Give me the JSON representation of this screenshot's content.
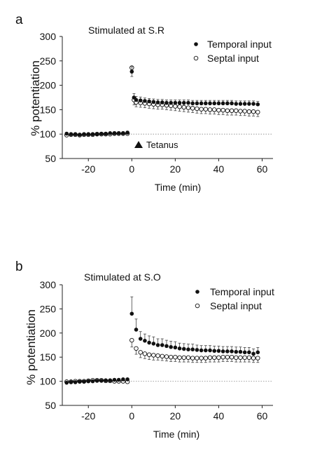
{
  "chart_data": [
    {
      "type": "scatter",
      "panel_label": "a",
      "title": "Stimulated at S.R",
      "xlabel": "Time (min)",
      "ylabel": "% potentiation",
      "xlim": [
        -32,
        65
      ],
      "ylim": [
        50,
        300
      ],
      "x_ticks": [
        -20,
        0,
        20,
        40,
        60
      ],
      "y_ticks": [
        50,
        100,
        150,
        200,
        250,
        300
      ],
      "baseline": 100,
      "annotation": "Tetanus",
      "annotation_x": -1,
      "legend_position": "top-right",
      "series": [
        {
          "name": "Temporal input",
          "marker": "filled-circle",
          "x": [
            -30,
            -28,
            -26,
            -24,
            -22,
            -20,
            -18,
            -16,
            -14,
            -12,
            -10,
            -8,
            -6,
            -4,
            -2,
            0,
            1,
            2,
            4,
            6,
            8,
            10,
            12,
            14,
            16,
            18,
            20,
            22,
            24,
            26,
            28,
            30,
            32,
            34,
            36,
            38,
            40,
            42,
            44,
            46,
            48,
            50,
            52,
            54,
            56,
            58
          ],
          "y": [
            101,
            100,
            100,
            99,
            100,
            100,
            100,
            100,
            101,
            101,
            102,
            102,
            102,
            102,
            103,
            228,
            175,
            170,
            169,
            168,
            167,
            166,
            165,
            165,
            164,
            164,
            164,
            164,
            164,
            164,
            163,
            163,
            163,
            163,
            163,
            163,
            163,
            163,
            163,
            163,
            162,
            162,
            162,
            162,
            162,
            161
          ],
          "err": [
            2,
            2,
            2,
            2,
            2,
            2,
            2,
            2,
            2,
            2,
            2,
            3,
            3,
            3,
            3,
            10,
            8,
            7,
            7,
            6,
            6,
            6,
            6,
            6,
            6,
            6,
            6,
            6,
            6,
            6,
            6,
            6,
            6,
            6,
            6,
            6,
            6,
            6,
            6,
            6,
            6,
            6,
            6,
            6,
            6,
            6
          ]
        },
        {
          "name": "Septal input",
          "marker": "open-circle",
          "x": [
            -30,
            -28,
            -26,
            -24,
            -22,
            -20,
            -18,
            -16,
            -14,
            -12,
            -10,
            -8,
            -6,
            -4,
            -2,
            0,
            1,
            2,
            4,
            6,
            8,
            10,
            12,
            14,
            16,
            18,
            20,
            22,
            24,
            26,
            28,
            30,
            32,
            34,
            36,
            38,
            40,
            42,
            44,
            46,
            48,
            50,
            52,
            54,
            56,
            58
          ],
          "y": [
            98,
            99,
            99,
            98,
            99,
            99,
            99,
            100,
            100,
            100,
            100,
            101,
            101,
            101,
            101,
            236,
            170,
            165,
            164,
            163,
            162,
            161,
            160,
            160,
            159,
            158,
            157,
            156,
            155,
            154,
            153,
            152,
            151,
            151,
            150,
            150,
            149,
            149,
            148,
            148,
            148,
            147,
            147,
            146,
            146,
            145
          ],
          "err": [
            2,
            2,
            2,
            2,
            2,
            2,
            2,
            2,
            2,
            2,
            2,
            2,
            2,
            2,
            2,
            18,
            10,
            9,
            9,
            9,
            9,
            9,
            9,
            9,
            9,
            9,
            9,
            9,
            9,
            9,
            9,
            9,
            9,
            9,
            9,
            9,
            9,
            9,
            9,
            9,
            9,
            9,
            9,
            9,
            9,
            9
          ]
        }
      ]
    },
    {
      "type": "scatter",
      "panel_label": "b",
      "title": "Stimulated at S.O",
      "xlabel": "Time (min)",
      "ylabel": "% potentiation",
      "xlim": [
        -32,
        65
      ],
      "ylim": [
        50,
        300
      ],
      "x_ticks": [
        -20,
        0,
        20,
        40,
        60
      ],
      "y_ticks": [
        50,
        100,
        150,
        200,
        250,
        300
      ],
      "baseline": 100,
      "legend_position": "top-right",
      "series": [
        {
          "name": "Temporal input",
          "marker": "filled-circle",
          "x": [
            -30,
            -28,
            -26,
            -24,
            -22,
            -20,
            -18,
            -16,
            -14,
            -12,
            -10,
            -8,
            -6,
            -4,
            -2,
            0,
            2,
            4,
            6,
            8,
            10,
            12,
            14,
            16,
            18,
            20,
            22,
            24,
            26,
            28,
            30,
            32,
            34,
            36,
            38,
            40,
            42,
            44,
            46,
            48,
            50,
            52,
            54,
            56,
            58
          ],
          "y": [
            97,
            98,
            98,
            99,
            99,
            100,
            100,
            101,
            101,
            102,
            102,
            103,
            103,
            104,
            104,
            240,
            207,
            188,
            184,
            180,
            178,
            175,
            175,
            173,
            171,
            170,
            168,
            167,
            166,
            166,
            165,
            164,
            164,
            164,
            163,
            163,
            162,
            162,
            162,
            161,
            161,
            160,
            160,
            157,
            160
          ],
          "err": [
            2,
            2,
            2,
            2,
            2,
            2,
            2,
            2,
            2,
            2,
            2,
            2,
            2,
            2,
            2,
            35,
            22,
            15,
            14,
            14,
            14,
            13,
            13,
            12,
            12,
            12,
            11,
            11,
            11,
            11,
            10,
            10,
            10,
            10,
            10,
            10,
            10,
            10,
            10,
            10,
            10,
            10,
            10,
            10,
            10
          ]
        },
        {
          "name": "Septal input",
          "marker": "open-circle",
          "x": [
            -30,
            -28,
            -26,
            -24,
            -22,
            -20,
            -18,
            -16,
            -14,
            -12,
            -10,
            -8,
            -6,
            -4,
            -2,
            0,
            2,
            4,
            6,
            8,
            10,
            12,
            14,
            16,
            18,
            20,
            22,
            24,
            26,
            28,
            30,
            32,
            34,
            36,
            38,
            40,
            42,
            44,
            46,
            48,
            50,
            52,
            54,
            56,
            58
          ],
          "y": [
            99,
            99,
            100,
            100,
            100,
            101,
            102,
            102,
            102,
            101,
            101,
            100,
            100,
            100,
            99,
            185,
            168,
            160,
            157,
            155,
            154,
            153,
            152,
            151,
            150,
            150,
            149,
            149,
            149,
            148,
            148,
            148,
            148,
            149,
            149,
            149,
            150,
            150,
            150,
            149,
            149,
            149,
            149,
            148,
            148
          ],
          "err": [
            3,
            3,
            3,
            3,
            3,
            3,
            3,
            3,
            3,
            3,
            3,
            3,
            3,
            3,
            3,
            14,
            12,
            11,
            10,
            10,
            10,
            9,
            9,
            9,
            9,
            9,
            9,
            9,
            9,
            9,
            9,
            9,
            9,
            9,
            9,
            9,
            9,
            9,
            9,
            9,
            9,
            9,
            9,
            9,
            9
          ]
        }
      ]
    }
  ]
}
